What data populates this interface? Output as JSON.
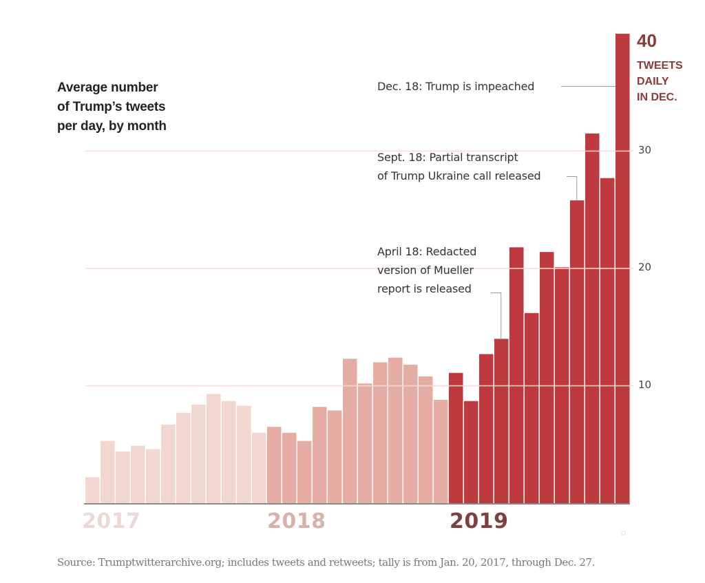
{
  "chart_data": {
    "type": "bar",
    "title": "Average number of Trump's tweets per day, by month",
    "title_lines": [
      "Average number",
      "of Trump’s tweets",
      "per day, by month"
    ],
    "xlabel": "",
    "ylabel": "",
    "ylim": [
      0,
      40
    ],
    "yticks": [
      10,
      20,
      30
    ],
    "grid": true,
    "categories": [
      "2017-01",
      "2017-02",
      "2017-03",
      "2017-04",
      "2017-05",
      "2017-06",
      "2017-07",
      "2017-08",
      "2017-09",
      "2017-10",
      "2017-11",
      "2017-12",
      "2018-01",
      "2018-02",
      "2018-03",
      "2018-04",
      "2018-05",
      "2018-06",
      "2018-07",
      "2018-08",
      "2018-09",
      "2018-10",
      "2018-11",
      "2018-12",
      "2019-01",
      "2019-02",
      "2019-03",
      "2019-04",
      "2019-05",
      "2019-06",
      "2019-07",
      "2019-08",
      "2019-09",
      "2019-10",
      "2019-11",
      "2019-12"
    ],
    "series": [
      {
        "name": "2017",
        "color": "#f2d6d0",
        "values": [
          2.2,
          5.3,
          4.4,
          4.9,
          4.6,
          6.7,
          7.7,
          8.4,
          9.3,
          8.7,
          8.3,
          6.0
        ]
      },
      {
        "name": "2018",
        "color": "#e4aca2",
        "values": [
          6.5,
          6.0,
          5.3,
          8.2,
          7.9,
          12.3,
          10.2,
          12.0,
          12.4,
          11.8,
          10.8,
          8.8
        ]
      },
      {
        "name": "2019",
        "color": "#bf3a3e",
        "values": [
          11.1,
          8.7,
          12.7,
          14.0,
          21.8,
          16.2,
          21.4,
          20.1,
          25.8,
          31.5,
          27.7,
          40.0
        ]
      }
    ],
    "year_labels": [
      {
        "label": "2017",
        "color": "#ecd9d6"
      },
      {
        "label": "2018",
        "color": "#d9b1ab"
      },
      {
        "label": "2019",
        "color": "#7e4040"
      }
    ],
    "highlight": {
      "value": "40",
      "lines": [
        "TWEETS",
        "DAILY",
        "IN DEC."
      ]
    },
    "annotations": [
      {
        "target": "2019-12",
        "lines": [
          "Dec. 18: Trump is impeached"
        ]
      },
      {
        "target": "2019-09",
        "lines": [
          "Sept. 18: Partial transcript",
          "of Trump Ukraine call released"
        ]
      },
      {
        "target": "2019-04",
        "lines": [
          "April 18: Redacted",
          "version of Mueller",
          "report is released"
        ]
      }
    ],
    "source": "Source: Trumptwitterarchive.org; includes tweets and retweets; tally is from Jan. 20, 2017, through Dec. 27."
  }
}
